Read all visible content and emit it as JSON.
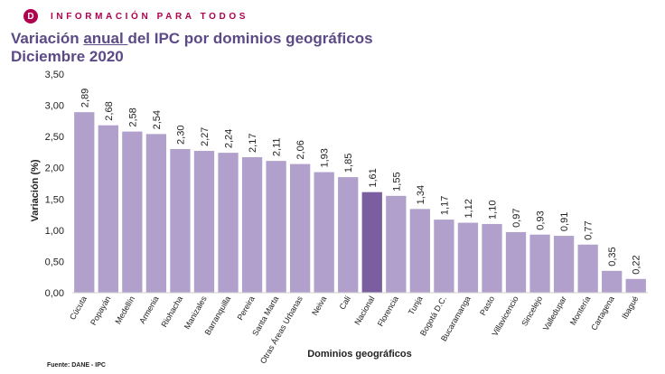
{
  "header": {
    "logo_letter": "D",
    "tagline": "INFORMACIÓN PARA TODOS",
    "brand_color": "#b0004f"
  },
  "title": {
    "line1_pre": "Variación ",
    "line1_underlined": "anual ",
    "line1_post": "del IPC por dominios geográficos",
    "line2": "Diciembre 2020",
    "color": "#5b4a86"
  },
  "source": "Fuente: DANE - IPC",
  "chart_data": {
    "type": "bar",
    "title": "Variación anual del IPC por dominios geográficos Diciembre 2020",
    "xlabel": "Dominios geográficos",
    "ylabel": "Variación (%)",
    "ylim": [
      0,
      3.5
    ],
    "yticks": [
      "0,00",
      "0,50",
      "1,00",
      "1,50",
      "2,00",
      "2,50",
      "3,00",
      "3,50"
    ],
    "grid": false,
    "bar_color": "#b1a0cb",
    "highlight_color": "#7a5e9f",
    "highlight_category": "Nacional",
    "categories": [
      "Cúcuta",
      "Popayán",
      "Medellín",
      "Armenia",
      "Riohacha",
      "Manizales",
      "Barranquilla",
      "Pereira",
      "Santa Marta",
      "Otras Áreas Urbanas",
      "Neiva",
      "Cali",
      "Nacional",
      "Florencia",
      "Tunja",
      "Bogotá D.C.",
      "Bucaramanga",
      "Pasto",
      "Villavicencio",
      "Sincelejo",
      "Valledupar",
      "Montería",
      "Cartagena",
      "Ibagué"
    ],
    "values": [
      2.89,
      2.68,
      2.58,
      2.54,
      2.3,
      2.27,
      2.24,
      2.17,
      2.11,
      2.06,
      1.93,
      1.85,
      1.61,
      1.55,
      1.34,
      1.17,
      1.12,
      1.1,
      0.97,
      0.93,
      0.91,
      0.77,
      0.35,
      0.22
    ],
    "value_labels": [
      "2,89",
      "2,68",
      "2,58",
      "2,54",
      "2,30",
      "2,27",
      "2,24",
      "2,17",
      "2,11",
      "2,06",
      "1,93",
      "1,85",
      "1,61",
      "1,55",
      "1,34",
      "1,17",
      "1,12",
      "1,10",
      "0,97",
      "0,93",
      "0,91",
      "0,77",
      "0,35",
      "0,22"
    ]
  }
}
